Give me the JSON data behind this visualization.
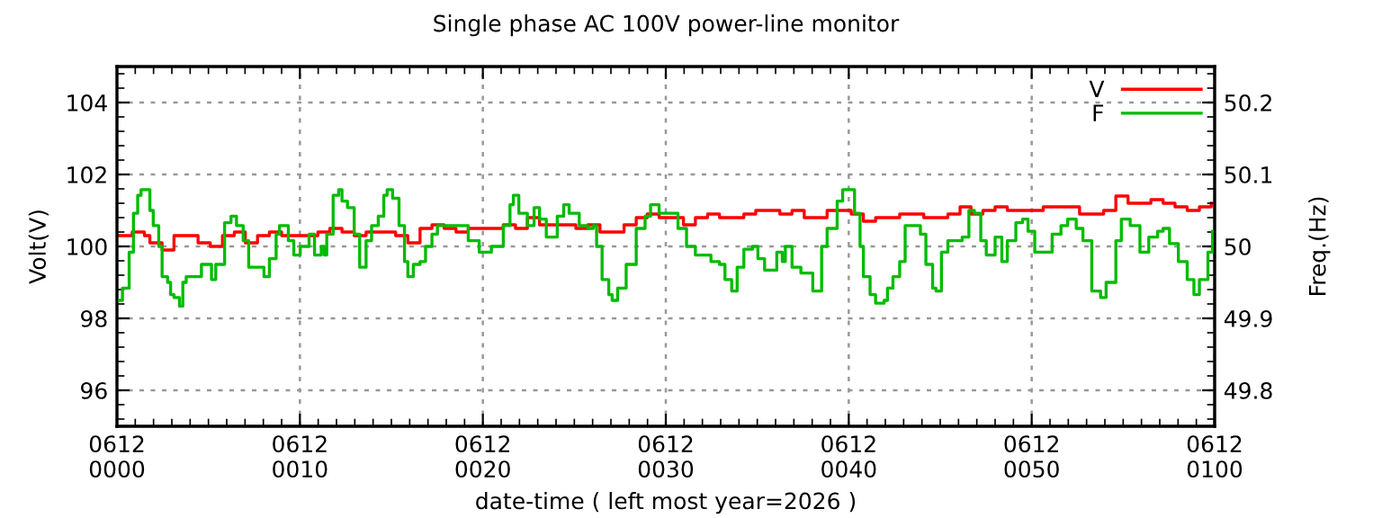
{
  "chart_data": {
    "type": "step",
    "title": "Single phase AC 100V power-line monitor",
    "xlabel": "date-time ( left most year=2026 )",
    "ylabel": "Volt(V)",
    "y2label": "Freq.(Hz)",
    "xlim": [
      "2026-06-12T00:00",
      "2026-06-12T01:00"
    ],
    "xticks": [
      {
        "value": "2026-06-12T00:00",
        "label": "0612\n0000"
      },
      {
        "value": "2026-06-12T00:10",
        "label": "0612\n0010"
      },
      {
        "value": "2026-06-12T00:20",
        "label": "0612\n0020"
      },
      {
        "value": "2026-06-12T00:30",
        "label": "0612\n0030"
      },
      {
        "value": "2026-06-12T00:40",
        "label": "0612\n0040"
      },
      {
        "value": "2026-06-12T00:50",
        "label": "0612\n0050"
      },
      {
        "value": "2026-06-12T01:00",
        "label": "0612\n0100"
      }
    ],
    "ylim": [
      95,
      105
    ],
    "yticks": [
      96,
      98,
      100,
      102,
      104
    ],
    "y2lim": [
      49.75,
      50.25
    ],
    "y2ticks": [
      49.8,
      49.9,
      50,
      50.1,
      50.2
    ],
    "grid": true,
    "legend": "top right",
    "series": [
      {
        "name": "V",
        "color": "#ff0000",
        "x": [
          "2026-06-12T00:00:00",
          "2026-06-12T00:00:50",
          "2026-06-12T00:01:30",
          "2026-06-12T00:01:48",
          "2026-06-12T00:02:28",
          "2026-06-12T00:03:07",
          "2026-06-12T00:03:47",
          "2026-06-12T00:04:26",
          "2026-06-12T00:05:06",
          "2026-06-12T00:05:46",
          "2026-06-12T00:06:25",
          "2026-06-12T00:07:01",
          "2026-06-12T00:07:41",
          "2026-06-12T00:08:20",
          "2026-06-12T00:09:00",
          "2026-06-12T00:09:40",
          "2026-06-12T00:10:19",
          "2026-06-12T00:10:59",
          "2026-06-12T00:11:38",
          "2026-06-12T00:12:18",
          "2026-06-12T00:12:58",
          "2026-06-12T00:13:37",
          "2026-06-12T00:14:17",
          "2026-06-12T00:15:14",
          "2026-06-12T00:15:54",
          "2026-06-12T00:16:34",
          "2026-06-12T00:17:13",
          "2026-06-12T00:17:53",
          "2026-06-12T00:18:32",
          "2026-06-12T00:19:12",
          "2026-06-12T00:20:10",
          "2026-06-12T00:21:07",
          "2026-06-12T00:21:47",
          "2026-06-12T00:22:26",
          "2026-06-12T00:23:06",
          "2026-06-12T00:23:46",
          "2026-06-12T00:24:25",
          "2026-06-12T00:25:05",
          "2026-06-12T00:25:44",
          "2026-06-12T00:26:24",
          "2026-06-12T00:27:04",
          "2026-06-12T00:27:43",
          "2026-06-12T00:28:23",
          "2026-06-12T00:28:59",
          "2026-06-12T00:29:38",
          "2026-06-12T00:30:18",
          "2026-06-12T00:30:58",
          "2026-06-12T00:31:37",
          "2026-06-12T00:32:17",
          "2026-06-12T00:32:56",
          "2026-06-12T00:33:36",
          "2026-06-12T00:34:16",
          "2026-06-12T00:34:55",
          "2026-06-12T00:35:35",
          "2026-06-12T00:36:14",
          "2026-06-12T00:36:54",
          "2026-06-12T00:37:34",
          "2026-06-12T00:38:10",
          "2026-06-12T00:38:49",
          "2026-06-12T00:39:29",
          "2026-06-12T00:40:08",
          "2026-06-12T00:40:48",
          "2026-06-12T00:41:28",
          "2026-06-12T00:42:07",
          "2026-06-12T00:42:47",
          "2026-06-12T00:43:26",
          "2026-06-12T00:44:06",
          "2026-06-12T00:44:46",
          "2026-06-12T00:45:25",
          "2026-06-12T00:46:05",
          "2026-06-12T00:46:41",
          "2026-06-12T00:47:20",
          "2026-06-12T00:48:00",
          "2026-06-12T00:48:40",
          "2026-06-12T00:49:19",
          "2026-06-12T00:49:59",
          "2026-06-12T00:50:38",
          "2026-06-12T00:51:18",
          "2026-06-12T00:51:58",
          "2026-06-12T00:52:37",
          "2026-06-12T00:53:17",
          "2026-06-12T00:53:56",
          "2026-06-12T00:54:36",
          "2026-06-12T00:55:16",
          "2026-06-12T00:55:55",
          "2026-06-12T00:56:31",
          "2026-06-12T00:57:11",
          "2026-06-12T00:57:50",
          "2026-06-12T00:58:30",
          "2026-06-12T00:59:10",
          "2026-06-12T00:59:49"
        ],
        "values": [
          100.3,
          100.4,
          100.3,
          100.1,
          99.9,
          100.3,
          100.3,
          100.1,
          100.0,
          100.3,
          100.4,
          100.1,
          100.3,
          100.4,
          100.3,
          100.3,
          100.3,
          100.4,
          100.5,
          100.4,
          100.3,
          100.4,
          100.4,
          100.3,
          100.1,
          100.5,
          100.6,
          100.5,
          100.4,
          100.5,
          100.5,
          100.6,
          100.5,
          100.8,
          100.6,
          100.6,
          100.6,
          100.5,
          100.6,
          100.4,
          100.4,
          100.6,
          100.8,
          100.9,
          100.8,
          100.8,
          100.6,
          100.8,
          100.9,
          100.8,
          100.8,
          100.9,
          101.0,
          101.0,
          100.9,
          101.0,
          100.8,
          100.8,
          101.0,
          101.0,
          100.9,
          100.7,
          100.8,
          100.8,
          100.9,
          100.9,
          100.8,
          100.8,
          100.9,
          101.1,
          100.9,
          101.0,
          101.1,
          101.0,
          101.0,
          101.0,
          101.1,
          101.1,
          101.1,
          100.9,
          100.9,
          101.0,
          101.4,
          101.2,
          101.2,
          101.3,
          101.2,
          101.1,
          101.0,
          101.1,
          101.2
        ]
      },
      {
        "name": "F",
        "color": "#00bb00",
        "axis": "y2",
        "x": [
          "2026-06-12T00:00:00",
          "2026-06-12T00:00:18",
          "2026-06-12T00:00:40",
          "2026-06-12T00:00:54",
          "2026-06-12T00:01:08",
          "2026-06-12T00:01:19",
          "2026-06-12T00:01:37",
          "2026-06-12T00:01:48",
          "2026-06-12T00:01:59",
          "2026-06-12T00:02:17",
          "2026-06-12T00:02:28",
          "2026-06-12T00:02:46",
          "2026-06-12T00:02:56",
          "2026-06-12T00:03:07",
          "2026-06-12T00:03:25",
          "2026-06-12T00:03:36",
          "2026-06-12T00:03:47",
          "2026-06-12T00:04:05",
          "2026-06-12T00:04:37",
          "2026-06-12T00:04:55",
          "2026-06-12T00:05:10",
          "2026-06-12T00:05:24",
          "2026-06-12T00:05:53",
          "2026-06-12T00:06:14",
          "2026-06-12T00:06:32",
          "2026-06-12T00:06:54",
          "2026-06-12T00:07:12",
          "2026-06-12T00:07:52",
          "2026-06-12T00:08:02",
          "2026-06-12T00:08:20",
          "2026-06-12T00:08:42",
          "2026-06-12T00:08:53",
          "2026-06-12T00:09:11",
          "2026-06-12T00:09:22",
          "2026-06-12T00:09:40",
          "2026-06-12T00:10:01",
          "2026-06-12T00:10:30",
          "2026-06-12T00:10:48",
          "2026-06-12T00:11:10",
          "2026-06-12T00:11:20",
          "2026-06-12T00:11:28",
          "2026-06-12T00:11:49",
          "2026-06-12T00:12:07",
          "2026-06-12T00:12:18",
          "2026-06-12T00:12:36",
          "2026-06-12T00:12:58",
          "2026-06-12T00:13:16",
          "2026-06-12T00:13:37",
          "2026-06-12T00:13:55",
          "2026-06-12T00:14:17",
          "2026-06-12T00:14:35",
          "2026-06-12T00:14:46",
          "2026-06-12T00:15:04",
          "2026-06-12T00:15:25",
          "2026-06-12T00:15:43",
          "2026-06-12T00:15:54",
          "2026-06-12T00:16:12",
          "2026-06-12T00:16:34",
          "2026-06-12T00:16:52",
          "2026-06-12T00:17:13",
          "2026-06-12T00:17:31",
          "2026-06-12T00:18:32",
          "2026-06-12T00:19:12",
          "2026-06-12T00:19:48",
          "2026-06-12T00:20:28",
          "2026-06-12T00:21:07",
          "2026-06-12T00:21:29",
          "2026-06-12T00:21:40",
          "2026-06-12T00:21:58",
          "2026-06-12T00:22:26",
          "2026-06-12T00:22:48",
          "2026-06-12T00:23:06",
          "2026-06-12T00:23:28",
          "2026-06-12T00:23:46",
          "2026-06-12T00:24:04",
          "2026-06-12T00:24:25",
          "2026-06-12T00:24:43",
          "2026-06-12T00:25:16",
          "2026-06-12T00:25:44",
          "2026-06-12T00:26:02",
          "2026-06-12T00:26:13",
          "2026-06-12T00:26:31",
          "2026-06-12T00:26:53",
          "2026-06-12T00:27:04",
          "2026-06-12T00:27:22",
          "2026-06-12T00:27:50",
          "2026-06-12T00:28:23",
          "2026-06-12T00:28:52",
          "2026-06-12T00:29:10",
          "2026-06-12T00:29:38",
          "2026-06-12T00:30:18",
          "2026-06-12T00:30:40",
          "2026-06-12T00:31:08",
          "2026-06-12T00:31:37",
          "2026-06-12T00:32:06",
          "2026-06-12T00:32:28",
          "2026-06-12T00:32:56",
          "2026-06-12T00:33:14",
          "2026-06-12T00:33:36",
          "2026-06-12T00:33:54",
          "2026-06-12T00:34:16",
          "2026-06-12T00:34:44",
          "2026-06-12T00:35:02",
          "2026-06-12T00:35:24",
          "2026-06-12T00:35:42",
          "2026-06-12T00:36:04",
          "2026-06-12T00:36:22",
          "2026-06-12T00:36:32",
          "2026-06-12T00:36:54",
          "2026-06-12T00:37:23",
          "2026-06-12T00:37:41",
          "2026-06-12T00:38:02",
          "2026-06-12T00:38:31",
          "2026-06-12T00:38:49",
          "2026-06-12T00:39:22",
          "2026-06-12T00:39:40",
          "2026-06-12T00:39:58",
          "2026-06-12T00:40:19",
          "2026-06-12T00:40:37",
          "2026-06-12T00:40:48",
          "2026-06-12T00:41:10",
          "2026-06-12T00:41:28",
          "2026-06-12T00:41:56",
          "2026-06-12T00:42:07",
          "2026-06-12T00:42:25",
          "2026-06-12T00:42:47",
          "2026-06-12T00:43:05",
          "2026-06-12T00:43:37",
          "2026-06-12T00:43:55",
          "2026-06-12T00:44:13",
          "2026-06-12T00:44:35",
          "2026-06-12T00:44:46",
          "2026-06-12T00:45:04",
          "2026-06-12T00:45:25",
          "2026-06-12T00:46:12",
          "2026-06-12T00:46:34",
          "2026-06-12T00:46:52",
          "2026-06-12T00:47:13",
          "2026-06-12T00:47:31",
          "2026-06-12T00:48:00",
          "2026-06-12T00:48:22",
          "2026-06-12T00:48:40",
          "2026-06-12T00:49:08",
          "2026-06-12T00:49:30",
          "2026-06-12T00:49:48",
          "2026-06-12T00:50:10",
          "2026-06-12T00:50:38",
          "2026-06-12T00:51:07",
          "2026-06-12T00:51:36",
          "2026-06-12T00:51:58",
          "2026-06-12T00:52:26",
          "2026-06-12T00:52:48",
          "2026-06-12T00:53:17",
          "2026-06-12T00:53:46",
          "2026-06-12T00:54:04",
          "2026-06-12T00:54:36",
          "2026-06-12T00:54:54",
          "2026-06-12T00:55:23",
          "2026-06-12T00:55:55",
          "2026-06-12T00:56:24",
          "2026-06-12T00:56:53",
          "2026-06-12T00:57:11",
          "2026-06-12T00:57:32",
          "2026-06-12T00:58:01",
          "2026-06-12T00:58:30",
          "2026-06-12T00:58:52",
          "2026-06-12T00:59:10",
          "2026-06-12T00:59:38",
          "2026-06-12T00:59:53"
        ],
        "values": [
          49.925,
          49.942,
          49.992,
          50.046,
          50.071,
          50.079,
          50.079,
          50.05,
          50.029,
          50.0,
          49.958,
          49.95,
          49.933,
          49.929,
          49.917,
          49.95,
          49.958,
          49.958,
          49.975,
          49.975,
          49.954,
          49.975,
          50.033,
          50.042,
          50.029,
          50.008,
          49.971,
          49.971,
          49.958,
          49.983,
          50.017,
          50.029,
          50.029,
          50.008,
          49.988,
          50.0,
          50.017,
          49.988,
          50.0,
          49.988,
          50.017,
          50.071,
          50.079,
          50.063,
          50.054,
          50.017,
          49.971,
          50.008,
          50.029,
          50.042,
          50.071,
          50.079,
          50.067,
          50.029,
          49.979,
          49.958,
          49.975,
          49.979,
          50.0,
          50.017,
          50.029,
          50.029,
          50.008,
          49.992,
          50.0,
          50.029,
          50.058,
          50.071,
          50.046,
          50.029,
          50.054,
          50.038,
          50.013,
          50.013,
          50.042,
          50.058,
          50.046,
          50.029,
          50.025,
          50.029,
          50.0,
          49.954,
          49.933,
          49.925,
          49.942,
          49.975,
          50.025,
          50.042,
          50.058,
          50.046,
          50.046,
          50.025,
          50.0,
          49.988,
          49.988,
          49.979,
          49.975,
          49.954,
          49.938,
          49.971,
          49.996,
          50.0,
          49.983,
          49.967,
          49.967,
          49.992,
          49.979,
          50.0,
          49.971,
          49.963,
          49.963,
          49.938,
          50.0,
          50.025,
          50.063,
          50.079,
          50.079,
          50.046,
          50.0,
          49.958,
          49.933,
          49.921,
          49.925,
          49.942,
          49.958,
          49.979,
          50.029,
          50.029,
          50.017,
          49.975,
          49.942,
          49.938,
          49.992,
          50.008,
          50.013,
          50.05,
          50.046,
          50.008,
          49.988,
          50.013,
          49.979,
          50.008,
          50.033,
          50.038,
          50.021,
          49.992,
          49.992,
          50.017,
          50.029,
          50.038,
          50.025,
          50.008,
          49.938,
          49.929,
          49.95,
          50.008,
          50.038,
          50.029,
          49.992,
          50.013,
          50.021,
          50.025,
          50.004,
          49.979,
          49.954,
          49.933,
          49.954,
          49.992,
          50.021
        ]
      }
    ]
  }
}
